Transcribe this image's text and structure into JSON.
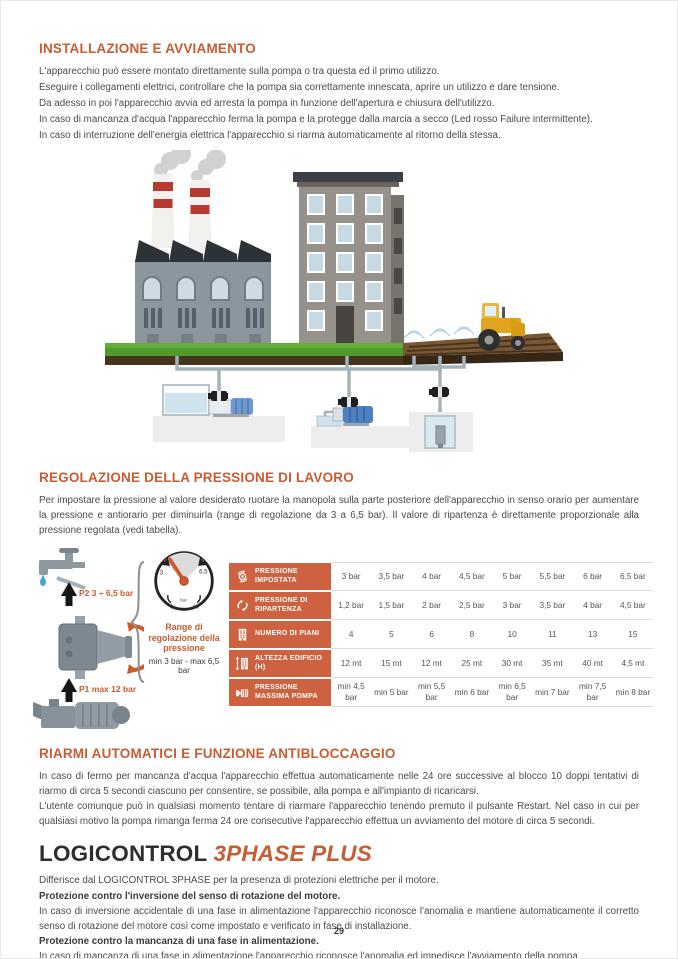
{
  "page": {
    "number": "29"
  },
  "theme": {
    "accent": "#c85c33",
    "table_header_bg": "#cd6140",
    "title_dark": "#2e2e2f",
    "body_text": "#4b4b4b"
  },
  "sections": {
    "installazione": {
      "title": "INSTALLAZIONE E AVVIAMENTO",
      "lines": [
        "L'apparecchio può essere montato direttamente sulla pompa o tra questa ed il primo utilizzo.",
        "Eseguire i collegamenti elettrici, controllare che la pompa sia correttamente innescata, aprire un utilizzo e dare tensione.",
        "Da adesso in poi l'apparecchio avvia ed arresta la pompa in funzione dell'apertura e chiusura dell'utilizzo.",
        "In caso di mancanza d'acqua l'apparecchio ferma la pompa e la protegge dalla marcia a secco (Led rosso Failure intermittente).",
        "In caso di interruzione dell'energia elettrica l'apparecchio si riarma automaticamente al ritorno della stessa."
      ]
    },
    "regolazione": {
      "title": "REGOLAZIONE DELLA PRESSIONE DI LAVORO",
      "body": "Per impostare la pressione al valore desiderato ruotare la manopola sulla parte posteriore dell'apparecchio in senso orario per aumentare la pressione e antiorario per diminuirla (range di regolazione da 3 a 6,5 bar). Il valore di ripartenza è direttamente proporzionale alla pressione regolata (vedi tabella)."
    },
    "riarmi": {
      "title": "RIARMI AUTOMATICI E FUNZIONE ANTIBLOCCAGGIO",
      "para1": "In caso di fermo per mancanza d'acqua l'apparecchio effettua automaticamente nelle 24 ore successive al blocco 10 doppi tentativi di riarmo di circa 5 secondi ciascuno per consentire, se possibile, alla pompa e all'impianto di ricaricarsi.",
      "para2": "L'utente comunque può in qualsiasi momento tentare di riarmare l'apparecchio tenendo premuto il pulsante Restart. Nel caso in cui per qualsiasi motivo la pompa rimanga ferma 24 ore consecutive l'apparecchio effettua un avviamento del motore di circa 5 secondi."
    },
    "logicontrol": {
      "title": "LOGICONTROL",
      "title_suffix": "3PHASE PLUS",
      "intro": "Differisce dal LOGICONTROL 3PHASE per la presenza di protezioni elettriche per il motore.",
      "bold1": "Protezione contro l'inversione del senso di rotazione del motore.",
      "para1": "In caso di inversione accidentale di una fase in alimentazione l'apparecchio riconosce l'anomalia e mantiene automaticamente il corretto senso di rotazione del motore così come impostato e verificato in fase di installazione.",
      "bold2": "Protezione contro la mancanza di una fase in alimentazione.",
      "para2": "In caso di mancanza di una fase in alimentazione l'apparecchio riconosce l'anomalia ed impedisce l'avviamento della pompa."
    }
  },
  "diagram": {
    "p2_label": "P2 3 ÷ 6,5 bar",
    "p1_label": "P1 max 12 bar",
    "gauge": {
      "tick_left": "3",
      "tick_right": "6,5",
      "tick_bottom_left": "0",
      "tick_bottom_right": "10",
      "unit": "bar"
    },
    "range_title": "Range di regolazione della pressione",
    "range_subtitle": "min 3 bar - max 6,5 bar"
  },
  "table": {
    "rows": [
      {
        "icon": "pressure-knob-icon",
        "label": "PRESSIONE IMPOSTATA",
        "values": [
          "3 bar",
          "3,5 bar",
          "4 bar",
          "4,5 bar",
          "5 bar",
          "5,5 bar",
          "6 bar",
          "6,5 bar"
        ]
      },
      {
        "icon": "restart-cycle-icon",
        "label": "PRESSIONE DI RIPARTENZA",
        "values": [
          "1,2 bar",
          "1,5 bar",
          "2 bar",
          "2,5 bar",
          "3 bar",
          "3,5 bar",
          "4 bar",
          "4,5 bar"
        ]
      },
      {
        "icon": "building-floors-icon",
        "label": "NUMERO DI PIANI",
        "values": [
          "4",
          "5",
          "6",
          "8",
          "10",
          "11",
          "13",
          "15"
        ]
      },
      {
        "icon": "building-height-icon",
        "label": "ALTEZZA EDIFICIO (H)",
        "values": [
          "12 mt",
          "15 mt",
          "12 mt",
          "25 mt",
          "30 mt",
          "35 mt",
          "40 mt",
          "4,5 mt"
        ]
      },
      {
        "icon": "pump-icon",
        "label": "PRESSIONE MASSIMA POMPA",
        "values": [
          "min 4,5 bar",
          "min 5 bar",
          "min 5,5 bar",
          "min 6 bar",
          "min 6,5 bar",
          "min 7 bar",
          "min 7,5 bar",
          "min 8 bar"
        ]
      }
    ]
  }
}
